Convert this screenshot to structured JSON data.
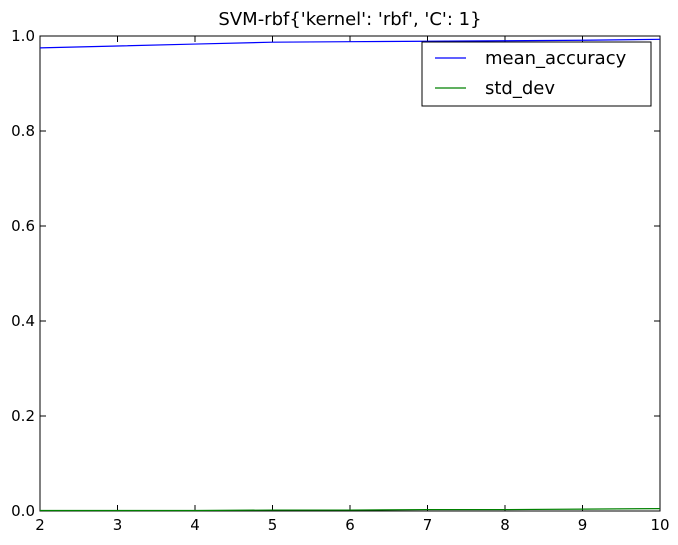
{
  "chart_data": {
    "type": "line",
    "title": "SVM-rbf{'kernel': 'rbf', 'C': 1}",
    "xlabel": "",
    "ylabel": "",
    "xlim": [
      2,
      10
    ],
    "ylim": [
      0.0,
      1.0
    ],
    "x_ticks": [
      "2",
      "3",
      "4",
      "5",
      "6",
      "7",
      "8",
      "9",
      "10"
    ],
    "y_ticks": [
      "0.0",
      "0.2",
      "0.4",
      "0.6",
      "0.8",
      "1.0"
    ],
    "grid": false,
    "legend_position": "top-right",
    "x": [
      2,
      3,
      4,
      5,
      6,
      7,
      8,
      9,
      10
    ],
    "series": [
      {
        "name": "mean_accuracy",
        "color": "#0000ff",
        "values": [
          0.975,
          0.979,
          0.983,
          0.987,
          0.988,
          0.989,
          0.99,
          0.991,
          0.993
        ]
      },
      {
        "name": "std_dev",
        "color": "#008000",
        "values": [
          0.001,
          0.001,
          0.001,
          0.002,
          0.002,
          0.003,
          0.003,
          0.004,
          0.005
        ]
      }
    ]
  }
}
